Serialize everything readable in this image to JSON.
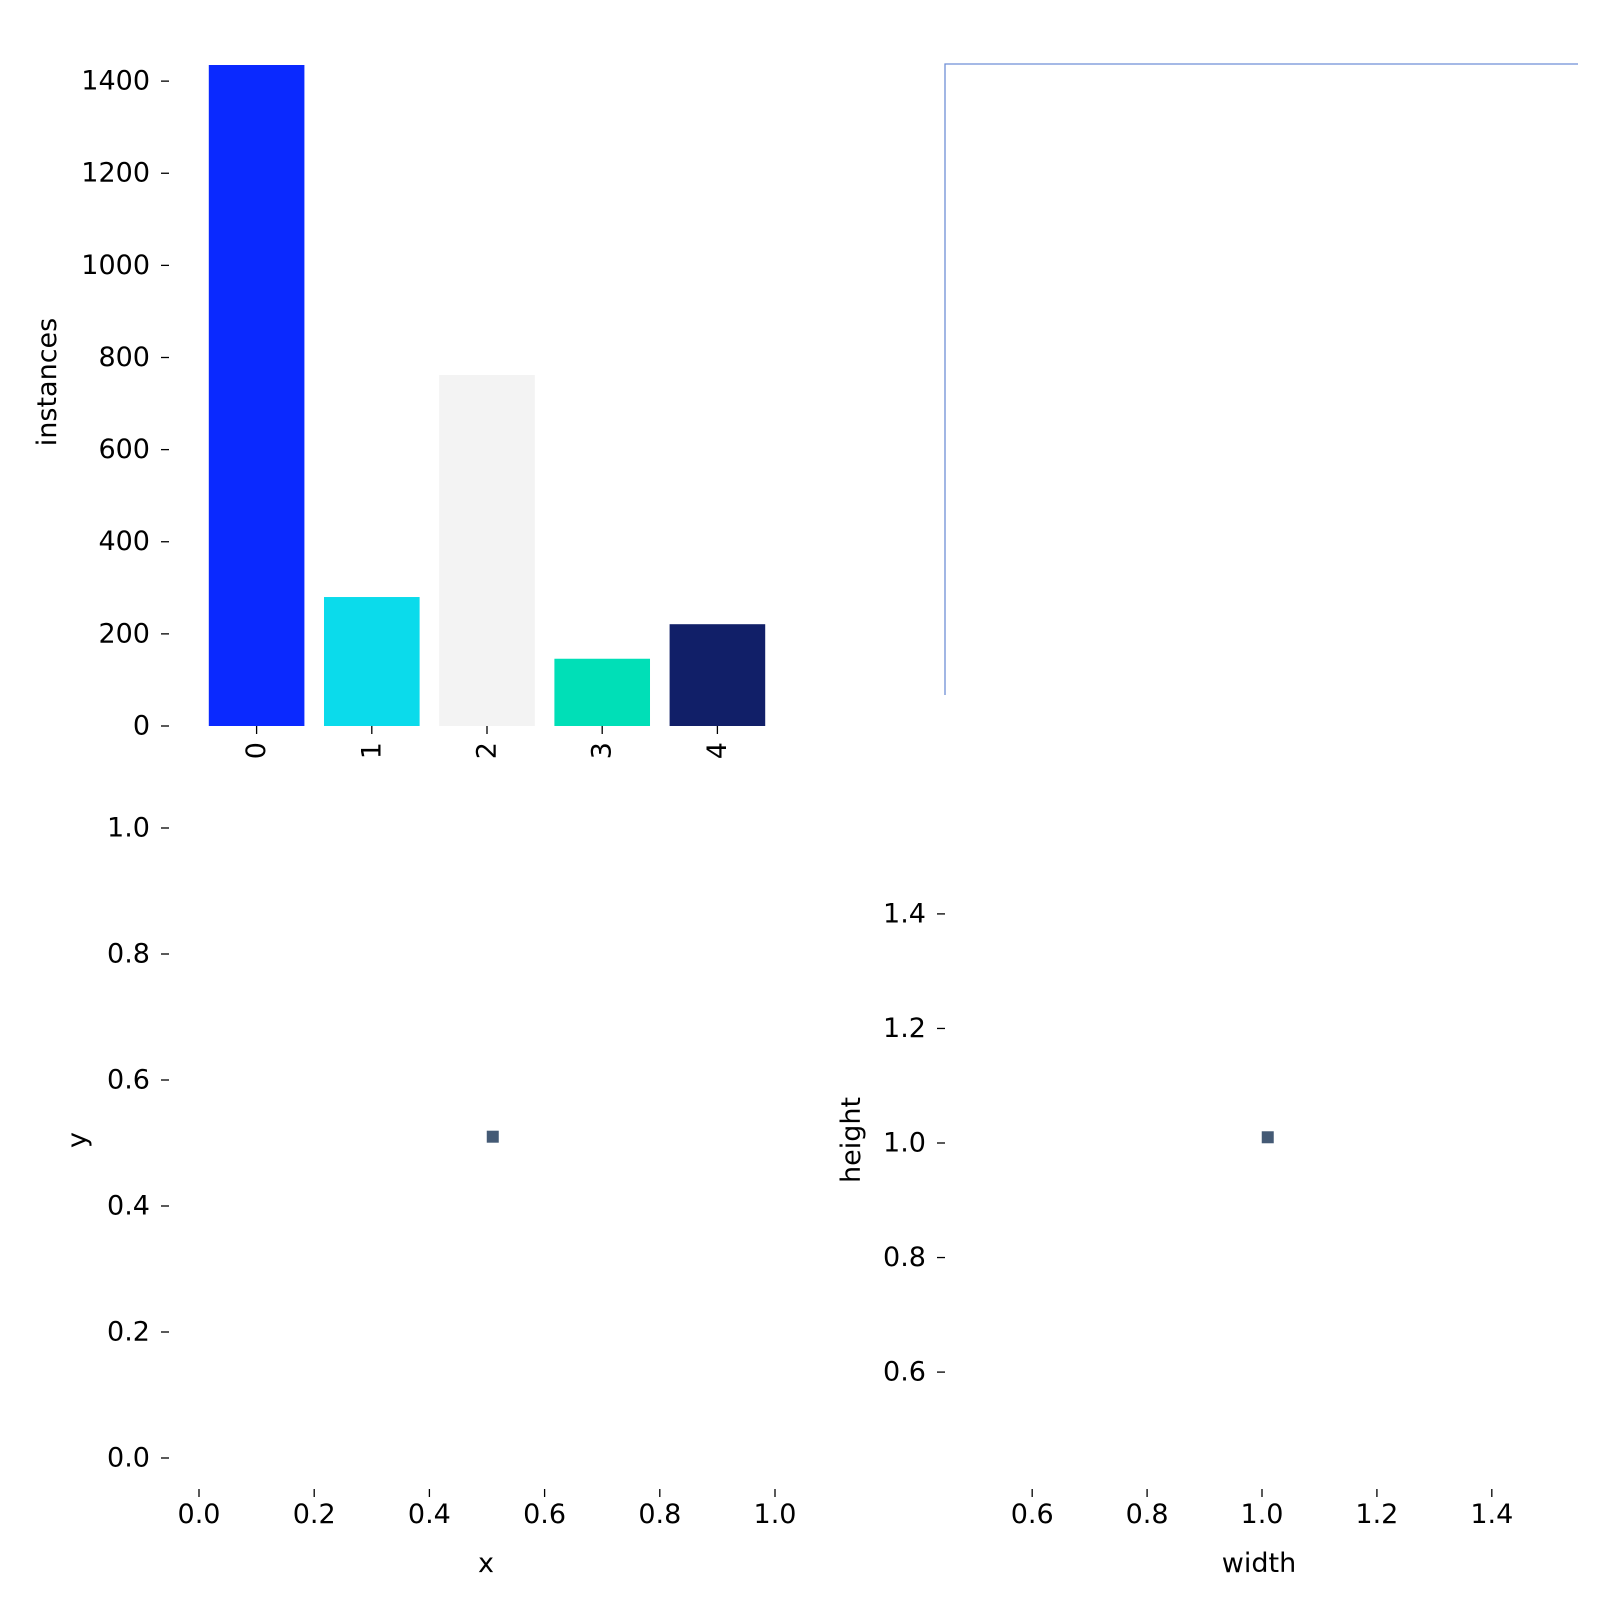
{
  "chart_data": [
    {
      "type": "bar",
      "categories": [
        "0",
        "1",
        "2",
        "3",
        "4"
      ],
      "values": [
        1435,
        280,
        762,
        146,
        221
      ],
      "colors": [
        "#0a29ff",
        "#0bdbeb",
        "#f3f3f3",
        "#00dfb7",
        "#111f68"
      ],
      "xlabel": "",
      "ylabel": "instances",
      "ylim": [
        0,
        1435
      ],
      "yticks": [
        "0",
        "200",
        "400",
        "600",
        "800",
        "1000",
        "1200",
        "1400"
      ],
      "grid": false
    },
    {
      "type": "line",
      "series": [
        {
          "x": [
            0,
            0,
            1
          ],
          "y": [
            0,
            1,
            1
          ]
        }
      ],
      "color": "#6f8fd6",
      "axes_visible": false
    },
    {
      "type": "scatter",
      "points": [
        {
          "x": 0.51,
          "y": 0.51
        }
      ],
      "color": "#445a75",
      "xlabel": "x",
      "ylabel": "y",
      "xlim": [
        0,
        1
      ],
      "ylim": [
        0,
        1
      ],
      "xticks": [
        "0.0",
        "0.2",
        "0.4",
        "0.6",
        "0.8",
        "1.0"
      ],
      "yticks": [
        "0.0",
        "0.2",
        "0.4",
        "0.6",
        "0.8",
        "1.0"
      ],
      "grid": false
    },
    {
      "type": "scatter",
      "points": [
        {
          "x": 1.01,
          "y": 1.01
        }
      ],
      "color": "#445a75",
      "xlabel": "width",
      "ylabel": "height",
      "xlim": [
        0.45,
        1.55
      ],
      "ylim": [
        0.45,
        1.55
      ],
      "xticks": [
        "0.6",
        "0.8",
        "1.0",
        "1.2",
        "1.4"
      ],
      "yticks": [
        "0.6",
        "0.8",
        "1.0",
        "1.2",
        "1.4"
      ],
      "grid": false
    }
  ]
}
